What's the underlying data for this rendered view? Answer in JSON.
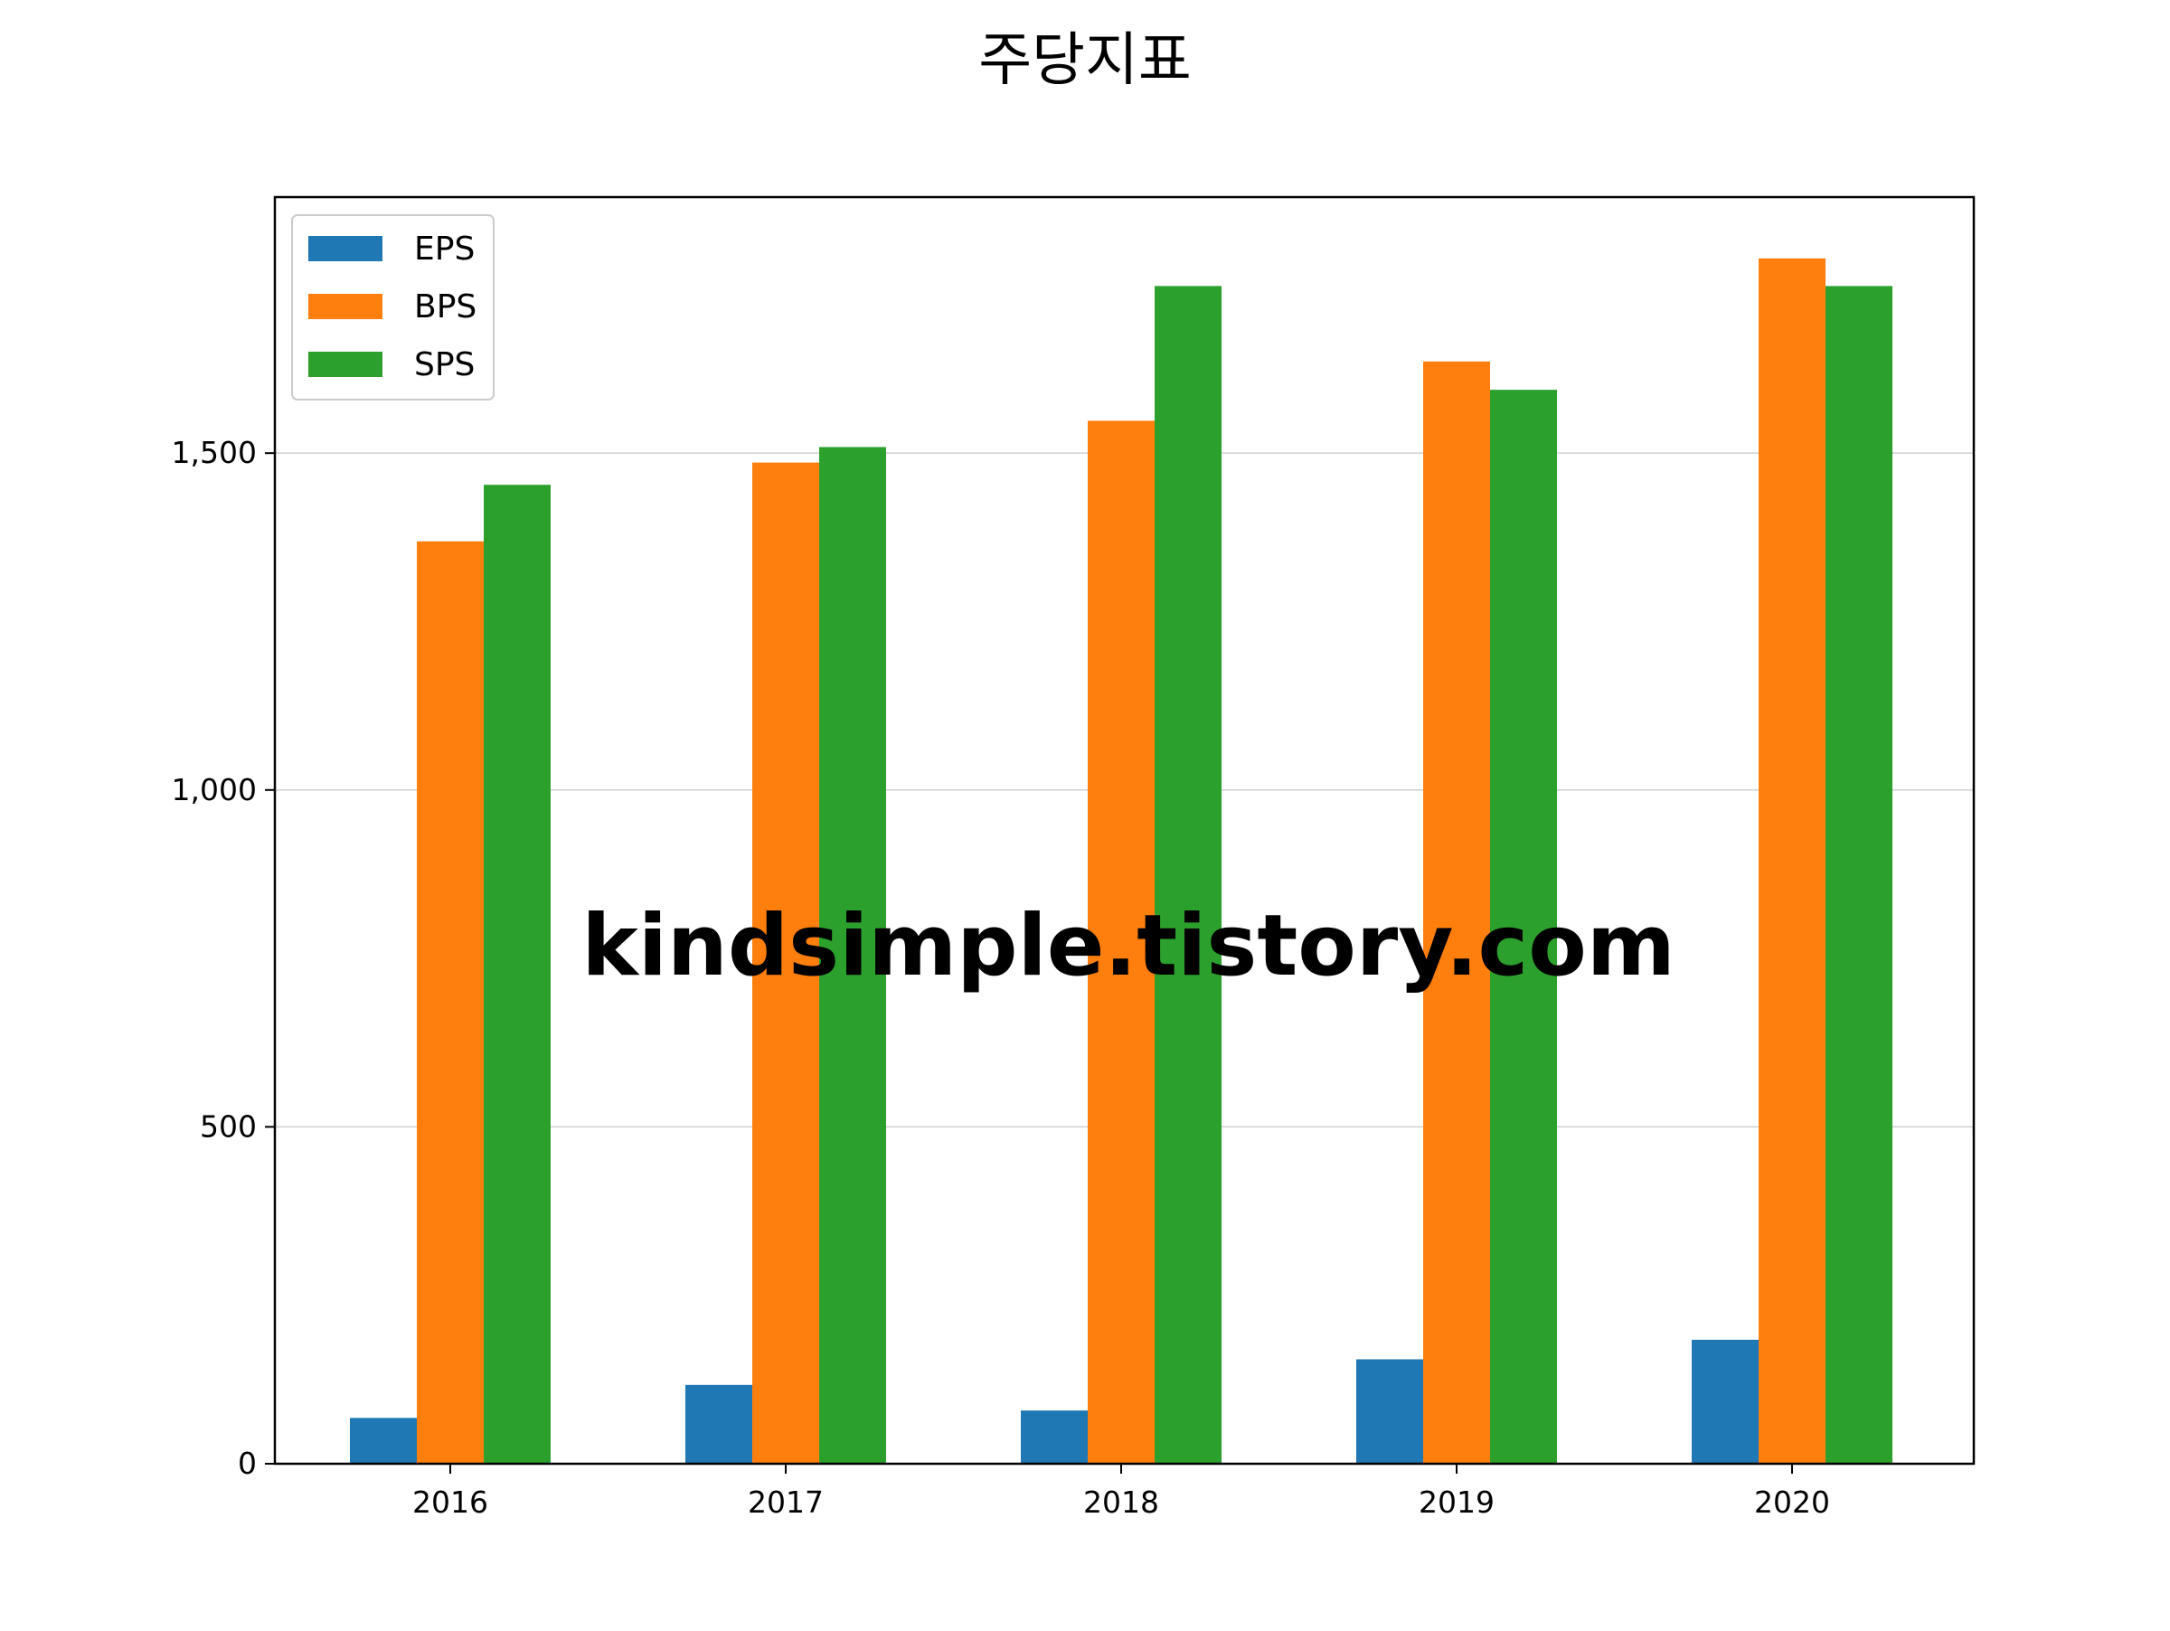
{
  "chart_data": {
    "type": "bar",
    "title": "주당지표",
    "xlabel": "",
    "ylabel": "",
    "categories": [
      "2016",
      "2017",
      "2018",
      "2019",
      "2020"
    ],
    "series": [
      {
        "name": "EPS",
        "color": "#1f77b4",
        "values": [
          68,
          117,
          79,
          155,
          184
        ]
      },
      {
        "name": "BPS",
        "color": "#ff7f0e",
        "values": [
          1369,
          1486,
          1548,
          1636,
          1789
        ]
      },
      {
        "name": "SPS",
        "color": "#2ca02c",
        "values": [
          1453,
          1509,
          1748,
          1594,
          1748
        ]
      }
    ],
    "ylim": [
      0,
      1880
    ],
    "yticks": [
      0,
      500,
      1000,
      1500
    ],
    "ytick_labels": [
      "0",
      "500",
      "1,000",
      "1,500"
    ],
    "grid": {
      "y": true,
      "x": false
    },
    "legend": {
      "placement": "top-left"
    },
    "watermark": "kindsimple.tistory.com",
    "watermark_color": "#e6a0e6"
  }
}
